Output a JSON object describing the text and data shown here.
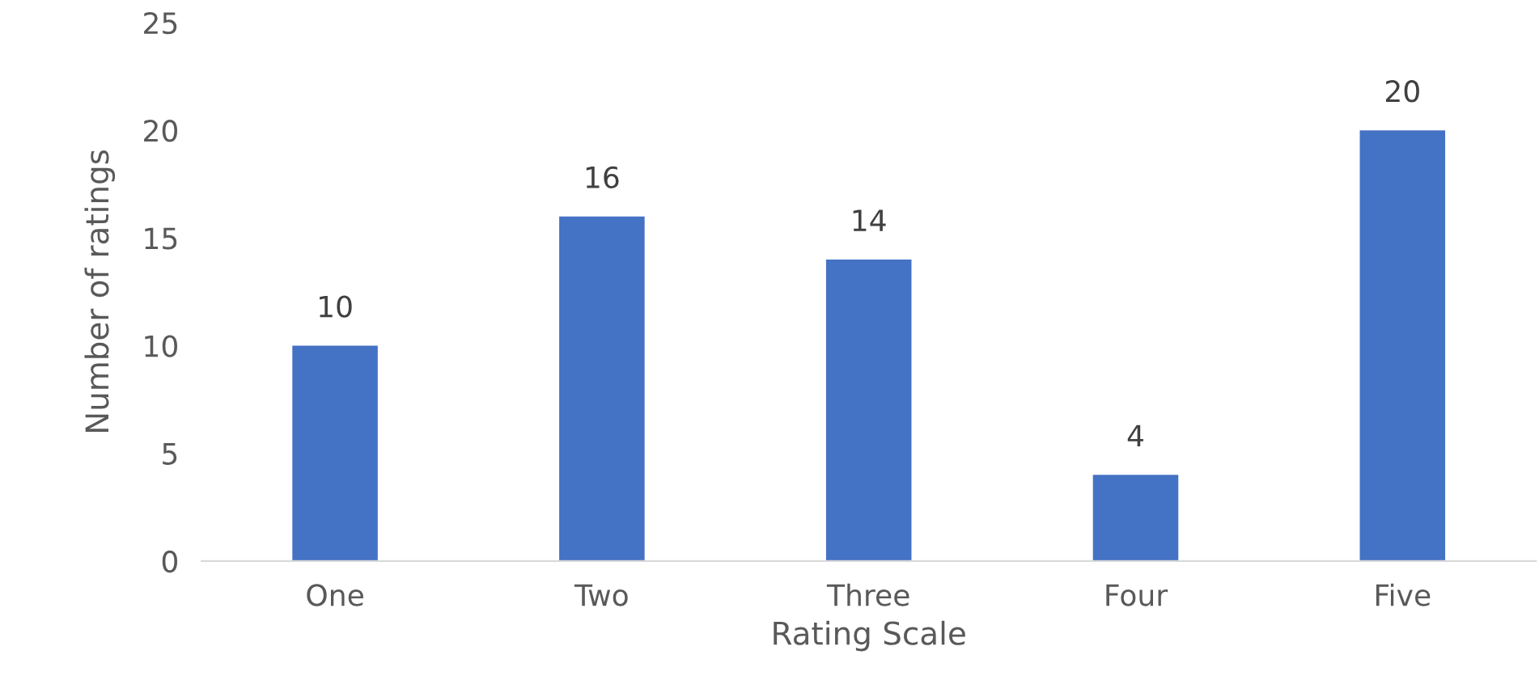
{
  "chart_data": {
    "type": "bar",
    "xlabel": "Rating Scale",
    "ylabel": "Number of ratings",
    "categories": [
      "One",
      "Two",
      "Three",
      "Four",
      "Five"
    ],
    "values": [
      10,
      16,
      14,
      4,
      20
    ],
    "color": "#4472c4",
    "ylim": [
      0,
      25
    ],
    "yticks": [
      0,
      5,
      10,
      15,
      20,
      25
    ],
    "grid": false,
    "data_labels": true
  }
}
